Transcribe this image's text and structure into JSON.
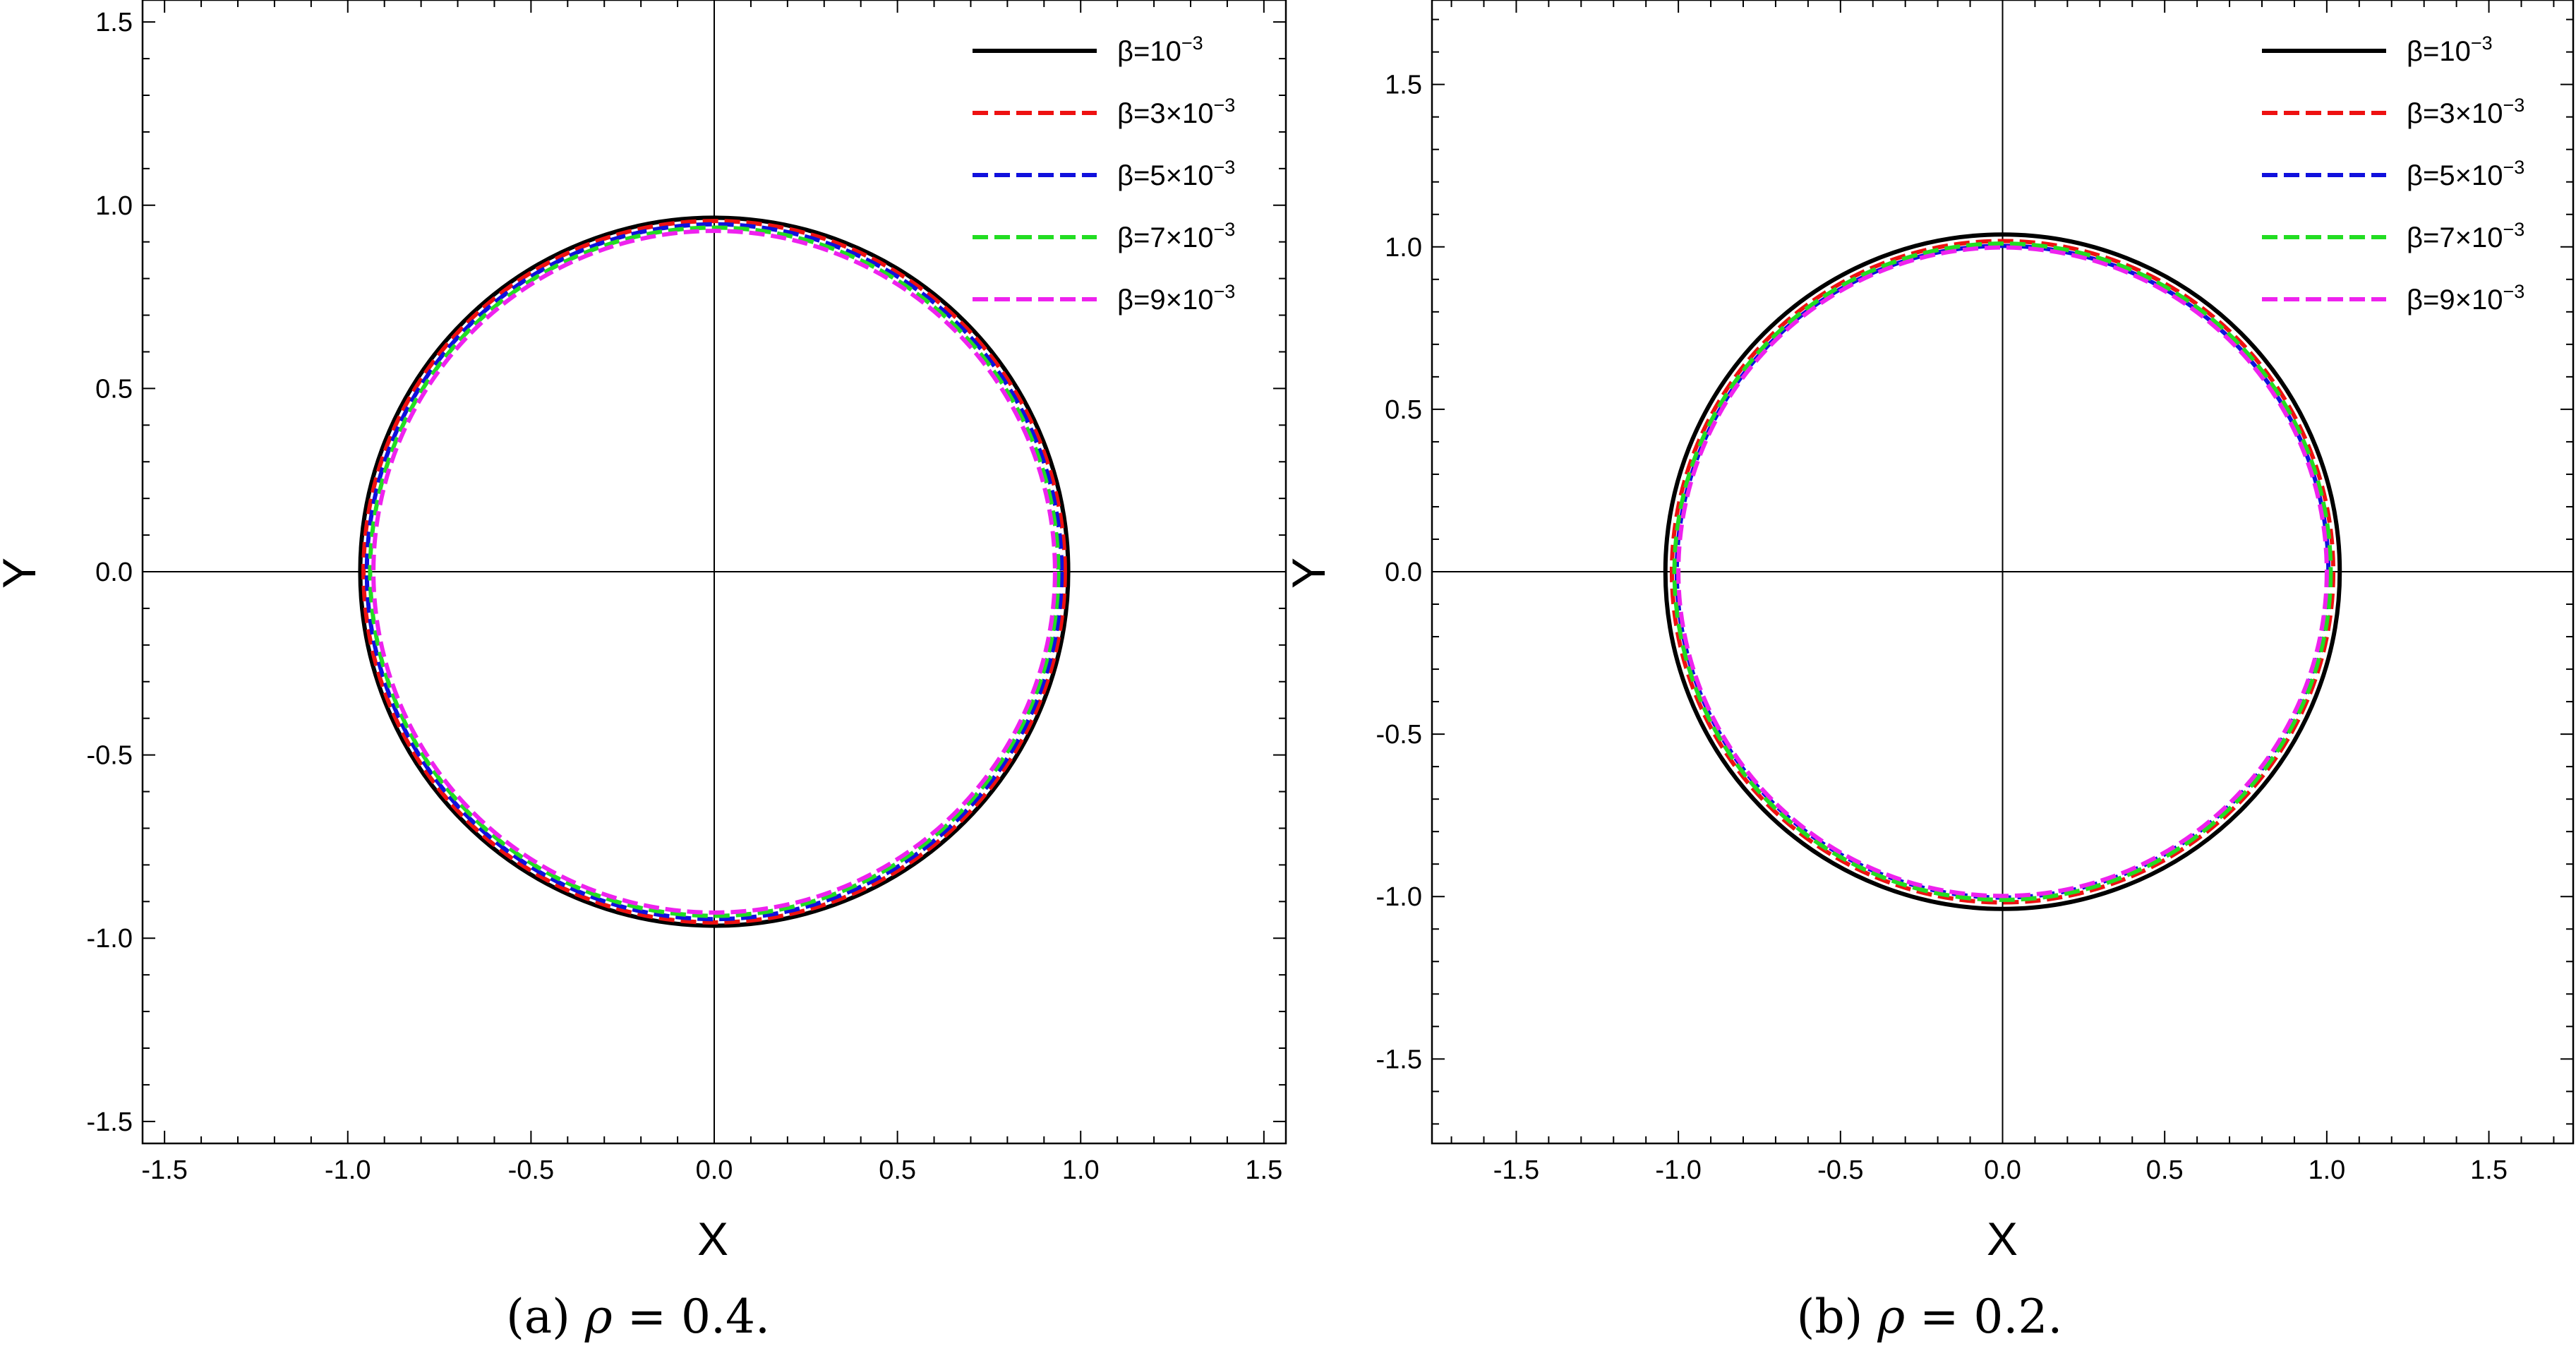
{
  "chart_data": [
    {
      "type": "line",
      "title": "",
      "caption": {
        "prefix": "(a) ",
        "symbol": "ρ",
        "rest": " = 0.4."
      },
      "xlabel": "X",
      "ylabel": "Y",
      "xlim": [
        -1.56,
        1.56
      ],
      "ylim": [
        -1.56,
        1.56
      ],
      "major_ticks": [
        -1.5,
        -1.0,
        -0.5,
        0.0,
        0.5,
        1.0,
        1.5
      ],
      "tick_labels": [
        "-1.5",
        "-1.0",
        "-0.5",
        "0.0",
        "0.5",
        "1.0",
        "1.5"
      ],
      "grid": false,
      "legend_position": "top-right",
      "series": [
        {
          "name": "β=10⁻³",
          "label_prefix": "β=10",
          "label_exp": "−3",
          "color": "#000000",
          "style": "solid",
          "radius": 0.966
        },
        {
          "name": "β=3×10⁻³",
          "label_prefix": "β=3×10",
          "label_exp": "−3",
          "color": "#ee1111",
          "style": "dashed",
          "radius": 0.957
        },
        {
          "name": "β=5×10⁻³",
          "label_prefix": "β=5×10",
          "label_exp": "−3",
          "color": "#1010dd",
          "style": "dashed",
          "radius": 0.948
        },
        {
          "name": "β=7×10⁻³",
          "label_prefix": "β=7×10",
          "label_exp": "−3",
          "color": "#22dd22",
          "style": "dashed",
          "radius": 0.939
        },
        {
          "name": "β=9×10⁻³",
          "label_prefix": "β=9×10",
          "label_exp": "−3",
          "color": "#ee22ee",
          "style": "dashed",
          "radius": 0.93
        }
      ]
    },
    {
      "type": "line",
      "title": "",
      "caption": {
        "prefix": "(b) ",
        "symbol": "ρ",
        "rest": " = 0.2."
      },
      "xlabel": "X",
      "ylabel": "Y",
      "xlim": [
        -1.76,
        1.76
      ],
      "ylim": [
        -1.76,
        1.76
      ],
      "major_ticks": [
        -1.5,
        -1.0,
        -0.5,
        0.0,
        0.5,
        1.0,
        1.5
      ],
      "tick_labels": [
        "-1.5",
        "-1.0",
        "-0.5",
        "0.0",
        "0.5",
        "1.0",
        "1.5"
      ],
      "grid": false,
      "legend_position": "top-right",
      "series": [
        {
          "name": "β=10⁻³",
          "label_prefix": "β=10",
          "label_exp": "−3",
          "color": "#000000",
          "style": "solid",
          "radius": 1.04
        },
        {
          "name": "β=3×10⁻³",
          "label_prefix": "β=3×10",
          "label_exp": "−3",
          "color": "#ee1111",
          "style": "dashed",
          "radius": 1.02
        },
        {
          "name": "β=5×10⁻³",
          "label_prefix": "β=5×10",
          "label_exp": "−3",
          "color": "#1010dd",
          "style": "dashed",
          "radius": 1.005
        },
        {
          "name": "β=7×10⁻³",
          "label_prefix": "β=7×10",
          "label_exp": "−3",
          "color": "#22dd22",
          "style": "dashed",
          "radius": 1.012
        },
        {
          "name": "β=9×10⁻³",
          "label_prefix": "β=9×10",
          "label_exp": "−3",
          "color": "#ee22ee",
          "style": "dashed",
          "radius": 1.0
        }
      ]
    }
  ]
}
